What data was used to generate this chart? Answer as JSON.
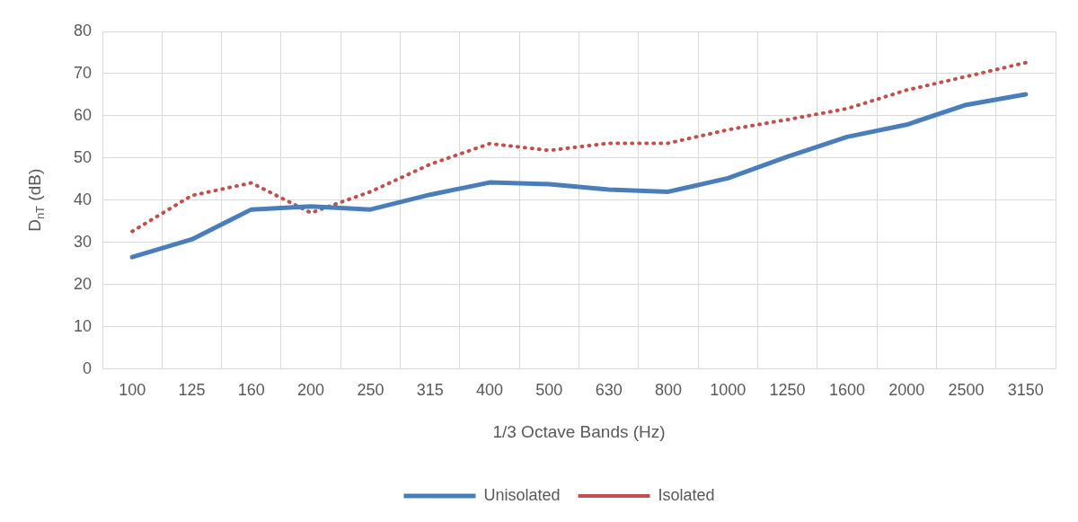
{
  "chart_data": {
    "type": "line",
    "xlabel": "1/3 Octave Bands (Hz)",
    "ylabel": "D$_{nT}$ (dB)",
    "categories": [
      "100",
      "125",
      "160",
      "200",
      "250",
      "315",
      "400",
      "500",
      "630",
      "800",
      "1000",
      "1250",
      "1600",
      "2000",
      "2500",
      "3150"
    ],
    "series": [
      {
        "name": "Unisolated",
        "color": "#4a7ebb",
        "line_style": "solid",
        "values": [
          26.5,
          30.7,
          37.8,
          38.5,
          37.8,
          41.3,
          44.2,
          43.8,
          42.5,
          42,
          45.2,
          50.3,
          55,
          57.9,
          62.6,
          65.1
        ]
      },
      {
        "name": "Isolated",
        "color": "#c0504d",
        "line_style": "dotted",
        "values": [
          32.6,
          41.1,
          44.1,
          37,
          42,
          48.5,
          53.4,
          51.8,
          53.5,
          53.5,
          56.7,
          59.1,
          61.7,
          66.1,
          69.3,
          72.6
        ]
      }
    ],
    "ylim": [
      0,
      80
    ],
    "yticks": [
      0,
      10,
      20,
      30,
      40,
      50,
      60,
      70,
      80
    ],
    "grid": true,
    "legend": "bottom",
    "marker": "none"
  }
}
